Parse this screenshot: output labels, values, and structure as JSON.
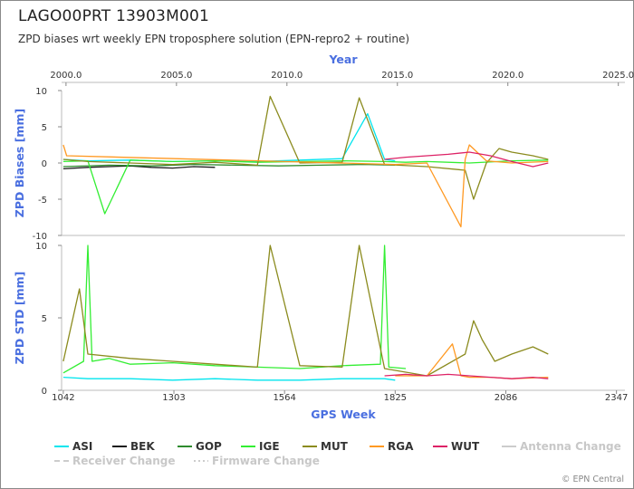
{
  "title": "LAGO00PRT 13903M001",
  "subtitle": "ZPD biases wrt weekly EPN troposphere solution (EPN-repro2 + routine)",
  "credit": "© EPN Central",
  "chart_data": {
    "type": "line",
    "top_axis": {
      "label": "Year",
      "ticks": [
        "2000.0",
        "2005.0",
        "2010.0",
        "2015.0",
        "2020.0",
        "2025.0"
      ],
      "range": [
        1999.8,
        2025.3
      ]
    },
    "bottom_axis": {
      "label": "GPS Week",
      "ticks": [
        "1042",
        "1303",
        "1564",
        "1825",
        "2086",
        "2347"
      ],
      "range": [
        1038,
        2367
      ]
    },
    "panels": [
      {
        "id": "bias",
        "ylabel": "ZPD Biases [mm]",
        "yticks": [
          "10",
          "5",
          "0",
          "-5",
          "-10"
        ],
        "ylim": [
          -10,
          10
        ]
      },
      {
        "id": "std",
        "ylabel": "ZPD STD [mm]",
        "yticks": [
          "10",
          "5",
          "0"
        ],
        "ylim": [
          0,
          10
        ]
      }
    ],
    "series": [
      {
        "name": "ASI",
        "color": "#00e5ee",
        "dash": "",
        "bias": {
          "x": [
            1042,
            1100,
            1200,
            1300,
            1400,
            1500,
            1600,
            1700,
            1760,
            1800,
            1825
          ],
          "y": [
            0.5,
            0.3,
            0.4,
            0.2,
            0.3,
            0.2,
            0.4,
            0.6,
            6.8,
            0.5,
            0.3
          ]
        },
        "std": {
          "x": [
            1042,
            1100,
            1200,
            1300,
            1400,
            1500,
            1600,
            1700,
            1800,
            1825
          ],
          "y": [
            0.9,
            0.8,
            0.8,
            0.7,
            0.8,
            0.7,
            0.7,
            0.8,
            0.8,
            0.7
          ]
        }
      },
      {
        "name": "BEK",
        "color": "#1a1a1a",
        "dash": "",
        "bias": {
          "x": [
            1042,
            1100,
            1150,
            1200,
            1250,
            1300,
            1350,
            1400
          ],
          "y": [
            -0.8,
            -0.6,
            -0.5,
            -0.4,
            -0.6,
            -0.7,
            -0.5,
            -0.6
          ]
        },
        "std": {
          "x": [],
          "y": []
        }
      },
      {
        "name": "GOP",
        "color": "#2e8b2e",
        "dash": "",
        "bias": {
          "x": [
            1042,
            1150,
            1250,
            1350,
            1450,
            1550,
            1650,
            1750,
            1825
          ],
          "y": [
            -0.5,
            -0.3,
            -0.4,
            -0.2,
            -0.3,
            -0.4,
            -0.3,
            -0.2,
            -0.3
          ]
        },
        "std": {
          "x": [],
          "y": []
        }
      },
      {
        "name": "IGE",
        "color": "#33ee33",
        "dash": "",
        "bias": {
          "x": [
            1042,
            1100,
            1140,
            1200,
            1300,
            1400,
            1500,
            1600,
            1700,
            1800,
            1850,
            1900,
            2000,
            2100,
            2186
          ],
          "y": [
            0.2,
            0.3,
            -7,
            0.4,
            0.2,
            0.3,
            0.1,
            0.2,
            0.3,
            0.2,
            0.1,
            0.2,
            0.0,
            0.3,
            0.4
          ]
        },
        "std": {
          "x": [
            1042,
            1090,
            1100,
            1110,
            1150,
            1200,
            1300,
            1400,
            1500,
            1600,
            1700,
            1790,
            1800,
            1810,
            1850
          ],
          "y": [
            1.2,
            2.0,
            10,
            2.0,
            2.2,
            1.8,
            1.9,
            1.7,
            1.6,
            1.5,
            1.7,
            1.8,
            10,
            1.6,
            1.5
          ]
        }
      },
      {
        "name": "MUT",
        "color": "#8b8b1e",
        "dash": "",
        "bias": {
          "x": [
            1042,
            1100,
            1200,
            1300,
            1400,
            1500,
            1530,
            1600,
            1700,
            1740,
            1800,
            1900,
            1990,
            2010,
            2040,
            2070,
            2100,
            2150,
            2186
          ],
          "y": [
            0.5,
            0.2,
            0.0,
            -0.2,
            0.1,
            -0.3,
            9.2,
            0.0,
            0.1,
            9.0,
            -0.2,
            -0.5,
            -1.0,
            -5,
            0.0,
            2.0,
            1.5,
            1.0,
            0.5
          ]
        },
        "std": {
          "x": [
            1042,
            1080,
            1100,
            1200,
            1300,
            1400,
            1500,
            1530,
            1600,
            1700,
            1740,
            1800,
            1900,
            1990,
            2010,
            2030,
            2060,
            2100,
            2150,
            2186
          ],
          "y": [
            2.0,
            7.0,
            2.5,
            2.2,
            2.0,
            1.8,
            1.6,
            10,
            1.7,
            1.6,
            10,
            1.5,
            1.0,
            2.5,
            4.8,
            3.5,
            2.0,
            2.5,
            3.0,
            2.5
          ]
        }
      },
      {
        "name": "RGA",
        "color": "#ff9922",
        "dash": "",
        "bias": {
          "x": [
            1042,
            1050,
            1825,
            1900,
            1980,
            1990,
            2000,
            2040,
            2100,
            2186
          ],
          "y": [
            2.5,
            1.0,
            -0.2,
            0.0,
            -8.8,
            0.5,
            2.5,
            0.3,
            0.0,
            0.2
          ]
        },
        "std": {
          "x": [
            1825,
            1900,
            1960,
            1980,
            2000,
            2050,
            2100,
            2186
          ],
          "y": [
            1.0,
            1.0,
            3.2,
            1.0,
            0.9,
            0.9,
            0.8,
            0.9
          ]
        }
      },
      {
        "name": "WUT",
        "color": "#dd2266",
        "dash": "",
        "bias": {
          "x": [
            1800,
            1850,
            1900,
            1950,
            2000,
            2050,
            2100,
            2150,
            2186
          ],
          "y": [
            0.5,
            0.8,
            1.0,
            1.2,
            1.5,
            1.0,
            0.2,
            -0.5,
            0.0
          ]
        },
        "std": {
          "x": [
            1800,
            1850,
            1900,
            1950,
            2000,
            2050,
            2100,
            2150,
            2186
          ],
          "y": [
            1.0,
            1.1,
            1.0,
            1.1,
            1.0,
            0.9,
            0.8,
            0.9,
            0.8
          ]
        }
      }
    ],
    "events": [
      {
        "name": "Antenna Change",
        "color": "#cccccc",
        "dash": ""
      },
      {
        "name": "Receiver Change",
        "color": "#cccccc",
        "dash": "6,4"
      },
      {
        "name": "Firmware Change",
        "color": "#cccccc",
        "dash": "2,3"
      }
    ],
    "grid": false,
    "legend": "bottom"
  }
}
